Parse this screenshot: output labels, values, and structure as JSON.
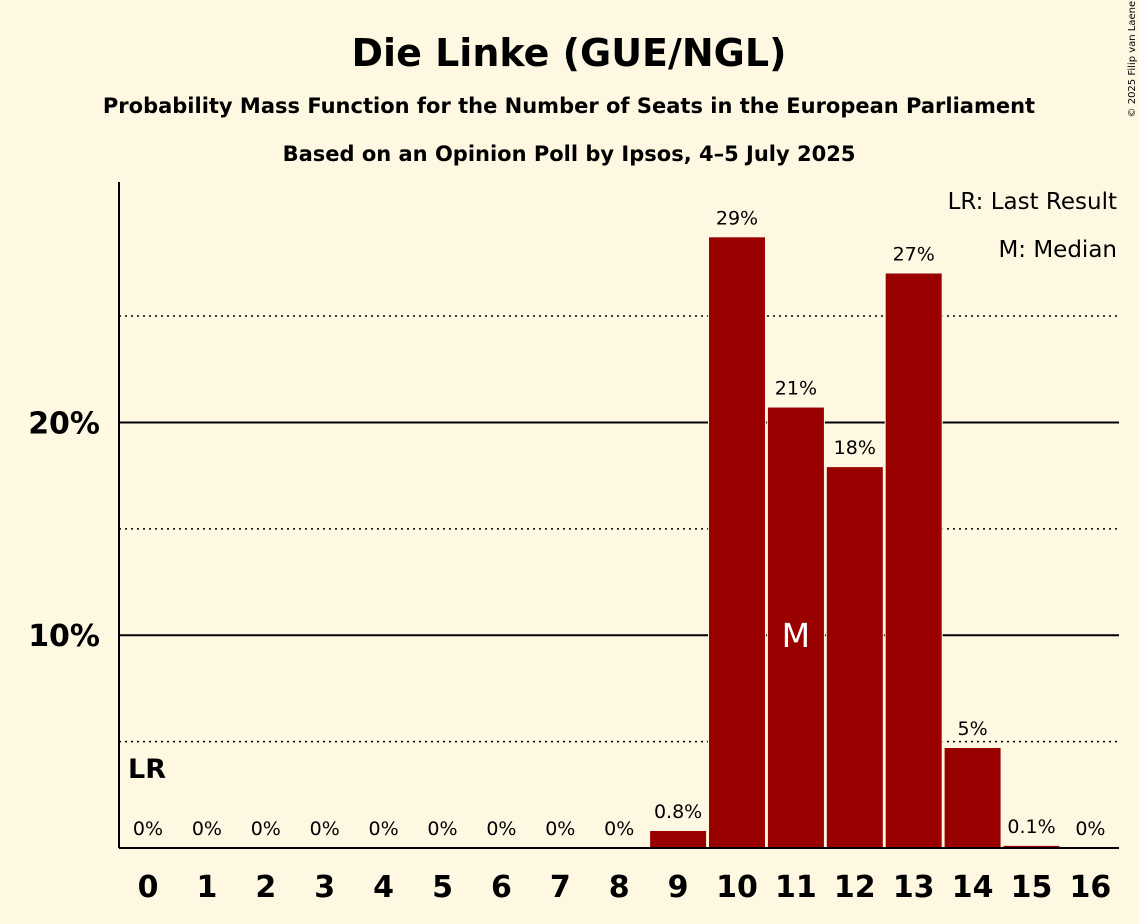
{
  "title": "Die Linke (GUE/NGL)",
  "subtitle1": "Probability Mass Function for the Number of Seats in the European Parliament",
  "subtitle2": "Based on an Opinion Poll by Ipsos, 4–5 July 2025",
  "copyright": "© 2025 Filip van Laenen",
  "legend": {
    "lr": "LR: Last Result",
    "median": "M: Median"
  },
  "markers": {
    "last_result_label": "LR",
    "last_result_seat": 0,
    "median_label": "M",
    "median_seat": 11
  },
  "colors": {
    "bar": "#990000",
    "background": "#fef8e3",
    "text": "#000000"
  },
  "chart_data": {
    "type": "bar",
    "categories": [
      "0",
      "1",
      "2",
      "3",
      "4",
      "5",
      "6",
      "7",
      "8",
      "9",
      "10",
      "11",
      "12",
      "13",
      "14",
      "15",
      "16"
    ],
    "values": [
      0,
      0,
      0,
      0,
      0,
      0,
      0,
      0,
      0,
      0.8,
      28.7,
      20.7,
      17.9,
      27.0,
      4.7,
      0.1,
      0
    ],
    "data_labels": [
      "0%",
      "0%",
      "0%",
      "0%",
      "0%",
      "0%",
      "0%",
      "0%",
      "0%",
      "0.8%",
      "29%",
      "21%",
      "18%",
      "27%",
      "5%",
      "0.1%",
      "0%"
    ],
    "y_ticks": [
      {
        "value": 10,
        "label": "10%"
      },
      {
        "value": 20,
        "label": "20%"
      }
    ],
    "minor_gridlines": [
      5,
      15,
      25
    ],
    "ylim": [
      0,
      31.3
    ],
    "grid": true,
    "legend_position": "top-right"
  }
}
